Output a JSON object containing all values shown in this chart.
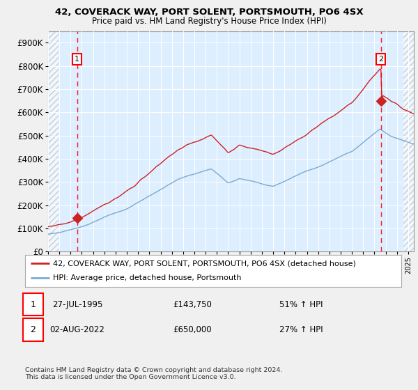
{
  "title1": "42, COVERACK WAY, PORT SOLENT, PORTSMOUTH, PO6 4SX",
  "title2": "Price paid vs. HM Land Registry's House Price Index (HPI)",
  "ylabel_ticks": [
    "£0",
    "£100K",
    "£200K",
    "£300K",
    "£400K",
    "£500K",
    "£600K",
    "£700K",
    "£800K",
    "£900K"
  ],
  "ylim": [
    0,
    950000
  ],
  "xlim_start": 1993.0,
  "xlim_end": 2025.5,
  "hpi_color": "#7aaad0",
  "price_color": "#cc2222",
  "marker1_x": 1995.57,
  "marker1_y": 143750,
  "marker2_x": 2022.58,
  "marker2_y": 650000,
  "legend_line1": "42, COVERACK WAY, PORT SOLENT, PORTSMOUTH, PO6 4SX (detached house)",
  "legend_line2": "HPI: Average price, detached house, Portsmouth",
  "table_row1_date": "27-JUL-1995",
  "table_row1_price": "£143,750",
  "table_row1_hpi": "51% ↑ HPI",
  "table_row2_date": "02-AUG-2022",
  "table_row2_price": "£650,000",
  "table_row2_hpi": "27% ↑ HPI",
  "footer": "Contains HM Land Registry data © Crown copyright and database right 2024.\nThis data is licensed under the Open Government Licence v3.0.",
  "bg_color": "#ddeeff",
  "grid_color": "#ffffff",
  "hatch_left_end": 1993.9,
  "hatch_right_start": 2024.6
}
